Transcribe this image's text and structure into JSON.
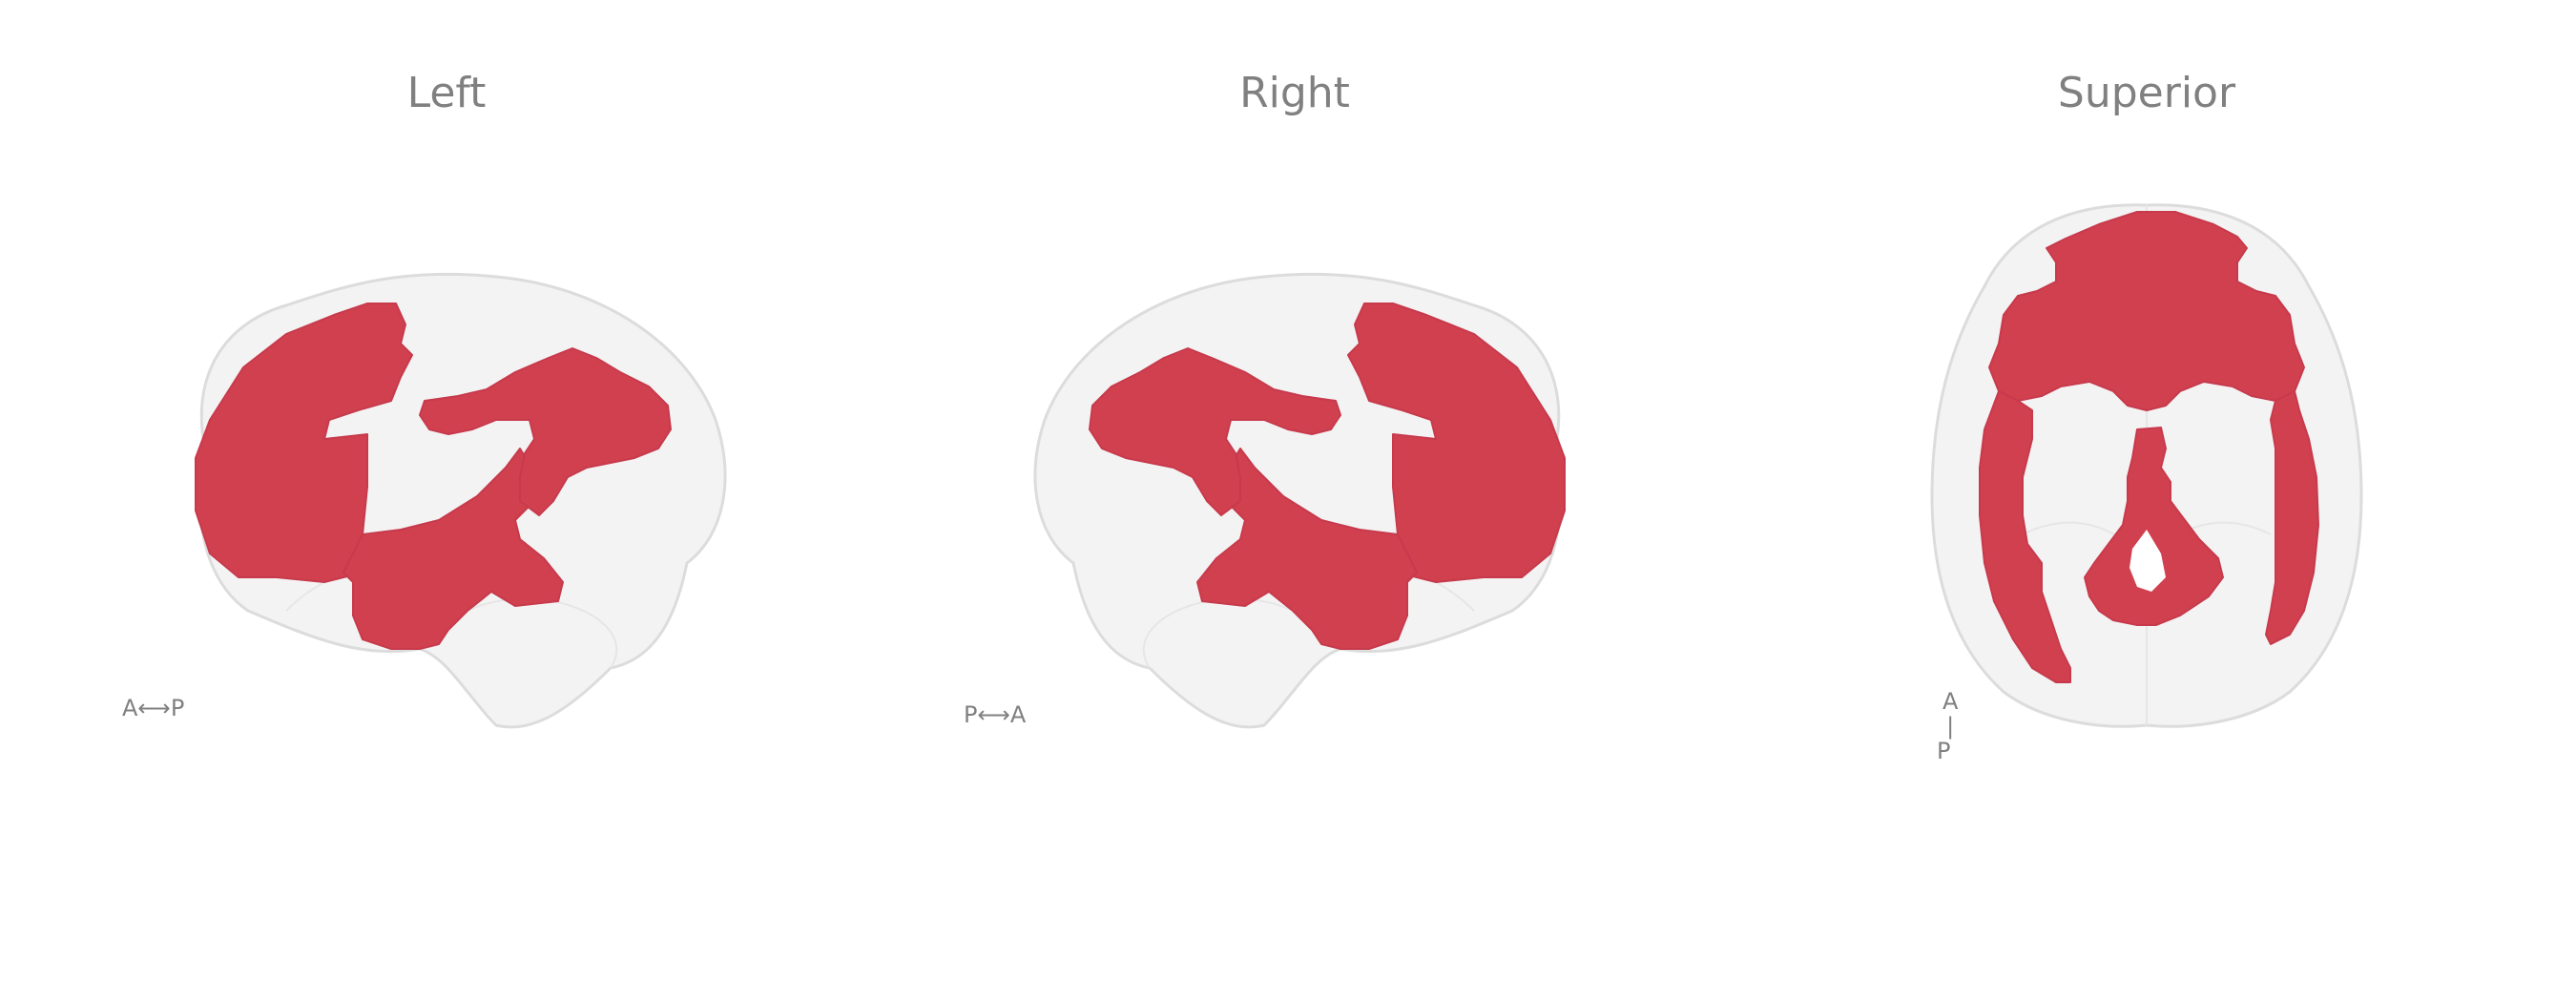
{
  "views": [
    {
      "id": "left",
      "title": "Left",
      "orientation": {
        "from": "A",
        "to": "P"
      }
    },
    {
      "id": "right",
      "title": "Right",
      "orientation": {
        "from": "P",
        "to": "A"
      }
    },
    {
      "id": "superior",
      "title": "Superior",
      "orientation": {
        "top": "A",
        "bottom": "P"
      }
    }
  ],
  "colors": {
    "region": "#d0404f",
    "brain_shell": "#f3f3f3",
    "text": "#808080"
  }
}
